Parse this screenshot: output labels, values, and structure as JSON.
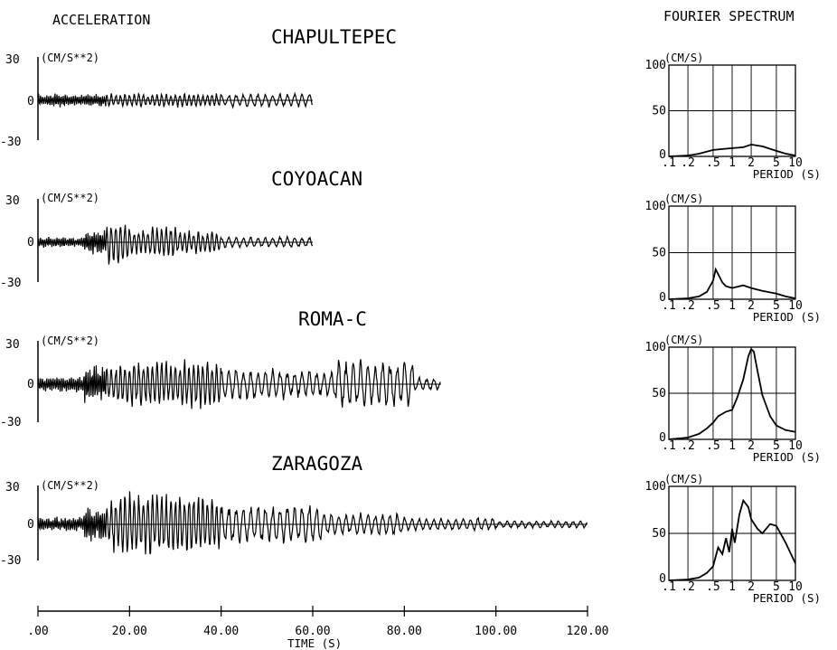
{
  "headers": {
    "left": "ACCELERATION",
    "right": "FOURIER SPECTRUM"
  },
  "time_axis": {
    "label": "TIME (S)",
    "ticks": [
      ".00",
      "20.00",
      "40.00",
      "60.00",
      "80.00",
      "100.00",
      "120.00"
    ]
  },
  "chart_data": [
    {
      "type": "line",
      "title": "CHAPULTEPEC",
      "ylabel": "(CM/S**2)",
      "ylim": [
        -30,
        30
      ],
      "yticks": [
        "30",
        "0",
        "-30"
      ],
      "xlim": [
        0,
        120
      ],
      "x_end": 60,
      "segments": [
        [
          0,
          60,
          5
        ]
      ]
    },
    {
      "type": "line",
      "title": "COYOACAN",
      "ylabel": "(CM/S**2)",
      "ylim": [
        -30,
        30
      ],
      "yticks": [
        "30",
        "0",
        "-30"
      ],
      "xlim": [
        0,
        120
      ],
      "x_end": 60,
      "segments": [
        [
          0,
          10,
          4
        ],
        [
          10,
          15,
          9
        ],
        [
          15,
          20,
          17
        ],
        [
          20,
          25,
          10
        ],
        [
          25,
          30,
          12
        ],
        [
          30,
          40,
          8
        ],
        [
          40,
          60,
          4
        ]
      ]
    },
    {
      "type": "line",
      "title": "ROMA-C",
      "ylabel": "(CM/S**2)",
      "ylim": [
        -30,
        30
      ],
      "yticks": [
        "30",
        "0",
        "-30"
      ],
      "xlim": [
        0,
        120
      ],
      "x_end": 88,
      "segments": [
        [
          0,
          10,
          6
        ],
        [
          10,
          17,
          14
        ],
        [
          17,
          40,
          18
        ],
        [
          40,
          55,
          12
        ],
        [
          55,
          65,
          10
        ],
        [
          65,
          82,
          18
        ],
        [
          82,
          88,
          5
        ]
      ]
    },
    {
      "type": "line",
      "title": "ZARAGOZA",
      "ylabel": "(CM/S**2)",
      "ylim": [
        -30,
        30
      ],
      "yticks": [
        "30",
        "0",
        "-30"
      ],
      "xlim": [
        0,
        120
      ],
      "x_end": 120,
      "segments": [
        [
          0,
          10,
          6
        ],
        [
          10,
          16,
          14
        ],
        [
          16,
          40,
          25
        ],
        [
          40,
          62,
          16
        ],
        [
          62,
          80,
          9
        ],
        [
          80,
          100,
          5
        ],
        [
          100,
          120,
          3
        ]
      ]
    },
    {
      "type": "line",
      "title": "",
      "ylabel": "(CM/S)",
      "xlabel": "PERIOD (S)",
      "xscale": "log",
      "xlim": [
        0.1,
        10
      ],
      "ylim": [
        0,
        100
      ],
      "grid": true,
      "xticks": [
        ".1",
        ".2",
        ".5",
        "1",
        "2",
        "5",
        "10"
      ],
      "yticks": [
        "100",
        "50",
        "0"
      ],
      "x": [
        0.1,
        0.2,
        0.3,
        0.5,
        0.7,
        1,
        1.5,
        2,
        3,
        5,
        7,
        10
      ],
      "y": [
        0,
        1,
        3,
        7,
        8,
        9,
        10,
        13,
        11,
        6,
        3,
        1
      ]
    },
    {
      "type": "line",
      "title": "",
      "ylabel": "(CM/S)",
      "xlabel": "PERIOD (S)",
      "xscale": "log",
      "xlim": [
        0.1,
        10
      ],
      "ylim": [
        0,
        100
      ],
      "grid": true,
      "xticks": [
        ".1",
        ".2",
        ".5",
        "1",
        "2",
        "5",
        "10"
      ],
      "yticks": [
        "100",
        "50",
        "0"
      ],
      "x": [
        0.1,
        0.2,
        0.3,
        0.4,
        0.5,
        0.55,
        0.6,
        0.7,
        0.8,
        1,
        1.5,
        2,
        3,
        5,
        7,
        10
      ],
      "y": [
        0,
        1,
        3,
        8,
        20,
        32,
        27,
        18,
        14,
        12,
        15,
        12,
        9,
        6,
        3,
        1
      ]
    },
    {
      "type": "line",
      "title": "",
      "ylabel": "(CM/S)",
      "xlabel": "PERIOD (S)",
      "xscale": "log",
      "xlim": [
        0.1,
        10
      ],
      "ylim": [
        0,
        100
      ],
      "grid": true,
      "xticks": [
        ".1",
        ".2",
        ".5",
        "1",
        "2",
        "5",
        "10"
      ],
      "yticks": [
        "100",
        "50",
        "0"
      ],
      "x": [
        0.1,
        0.2,
        0.3,
        0.4,
        0.5,
        0.6,
        0.8,
        1,
        1.2,
        1.5,
        1.8,
        2,
        2.2,
        2.5,
        3,
        4,
        5,
        7,
        10
      ],
      "y": [
        0,
        2,
        6,
        12,
        18,
        25,
        30,
        32,
        45,
        65,
        90,
        98,
        95,
        75,
        48,
        25,
        15,
        10,
        8
      ]
    },
    {
      "type": "line",
      "title": "",
      "ylabel": "(CM/S)",
      "xlabel": "PERIOD (S)",
      "xscale": "log",
      "xlim": [
        0.1,
        10
      ],
      "ylim": [
        0,
        100
      ],
      "grid": true,
      "xticks": [
        ".1",
        ".2",
        ".5",
        "1",
        "2",
        "5",
        "10"
      ],
      "yticks": [
        "100",
        "50",
        "0"
      ],
      "x": [
        0.1,
        0.2,
        0.3,
        0.4,
        0.5,
        0.6,
        0.7,
        0.8,
        0.9,
        1,
        1.1,
        1.3,
        1.5,
        1.8,
        2,
        2.5,
        3,
        4,
        5,
        7,
        10
      ],
      "y": [
        0,
        1,
        3,
        8,
        15,
        35,
        28,
        45,
        30,
        55,
        40,
        70,
        85,
        78,
        65,
        55,
        50,
        60,
        58,
        40,
        18
      ]
    }
  ]
}
